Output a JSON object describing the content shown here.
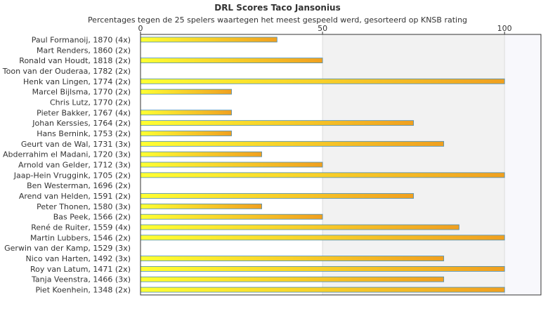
{
  "chart_data": {
    "type": "bar",
    "orientation": "horizontal",
    "title": "DRL Scores Taco Jansonius",
    "subtitle": "Percentages tegen de 25 spelers waartegen het meest gespeeld werd, gesorteerd op KNSB rating",
    "xlim": [
      0,
      110
    ],
    "xticks": [
      0,
      50,
      100
    ],
    "grid": true,
    "legend": "none",
    "colors": {
      "bar_start": "#ffff33",
      "bar_end": "#f0a020",
      "bar_edge": "#4a8fb8",
      "band_light": "#f2f2f2",
      "band_lighter": "#f8f8fc"
    },
    "categories": [
      "Paul Formanoij, 1870 (4x)",
      "Mart Renders, 1860 (2x)",
      "Ronald van Houdt, 1818 (2x)",
      "Toon van der Ouderaa, 1782 (2x)",
      "Henk van Lingen, 1774 (2x)",
      "Marcel Bijlsma, 1770 (2x)",
      "Chris Lutz, 1770 (2x)",
      "Pieter Bakker, 1767 (4x)",
      "Johan Kerssies, 1764 (2x)",
      "Hans Bernink, 1753 (2x)",
      "Geurt van de Wal, 1731 (3x)",
      "Abderrahim el Madani, 1720 (3x)",
      "Arnold van Gelder, 1712 (3x)",
      "Jaap-Hein Vruggink, 1705 (2x)",
      "Ben Westerman, 1696 (2x)",
      "Arend van Helden, 1591 (2x)",
      "Peter Thonen, 1580 (3x)",
      "Bas Peek, 1566 (2x)",
      "René de Ruiter, 1559 (4x)",
      "Martin Lubbers, 1546 (2x)",
      "Gerwin van der Kamp, 1529 (3x)",
      "Nico van Harten, 1492 (3x)",
      "Roy van Latum, 1471 (2x)",
      "Tanja Veenstra, 1466 (3x)",
      "Piet Koenhein, 1348 (2x)"
    ],
    "values": [
      37.5,
      0,
      50,
      0,
      100,
      25,
      0,
      25,
      75,
      25,
      83.3,
      33.3,
      50,
      100,
      0,
      75,
      33.3,
      50,
      87.5,
      100,
      0,
      83.3,
      100,
      83.3,
      100
    ]
  }
}
